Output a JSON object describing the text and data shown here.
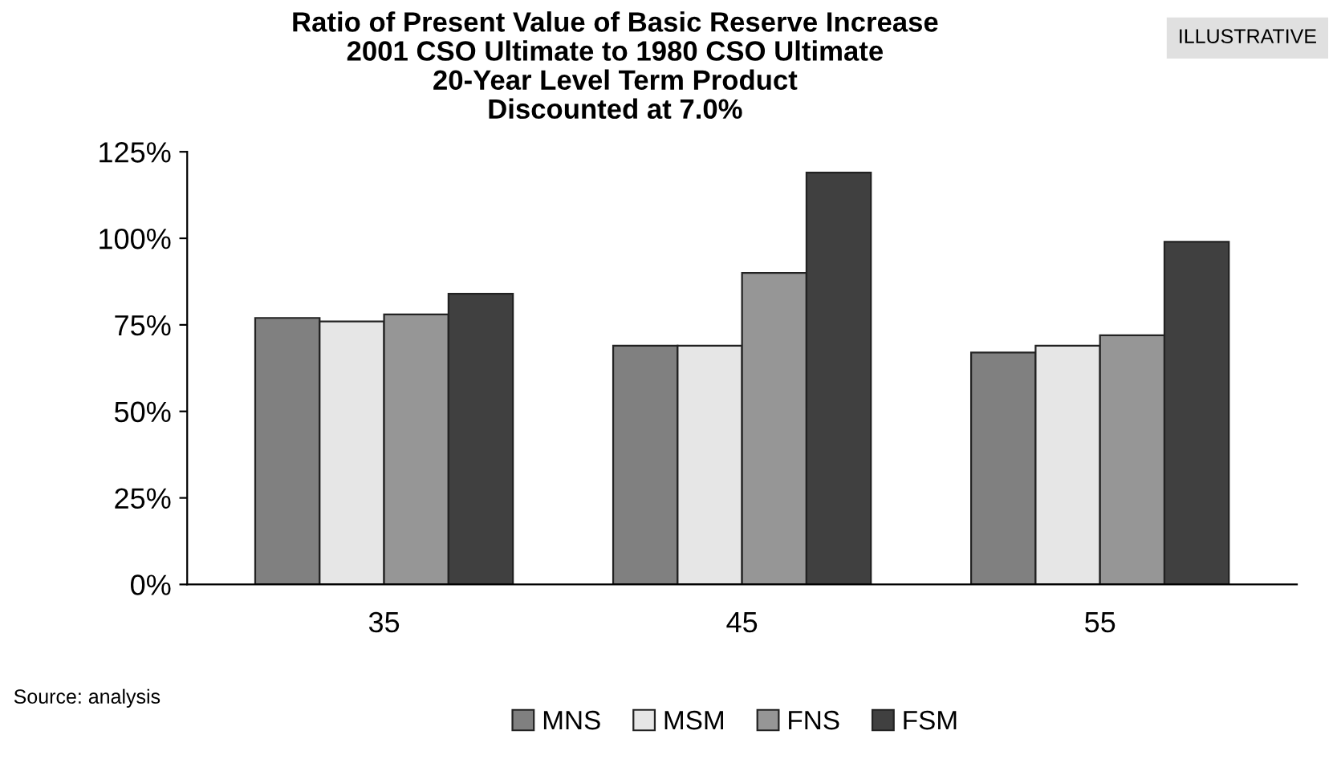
{
  "chart_data": {
    "type": "bar",
    "title": "Ratio of Present Value of Basic Reserve Increase\n2001 CSO Ultimate to 1980 CSO Ultimate\n20-Year Level Term Product\nDiscounted at 7.0%",
    "categories": [
      "35",
      "45",
      "55"
    ],
    "series": [
      {
        "name": "MNS",
        "color": "#808080",
        "values": [
          77,
          69,
          67
        ]
      },
      {
        "name": "MSM",
        "color": "#e6e6e6",
        "values": [
          76,
          69,
          69
        ]
      },
      {
        "name": "FNS",
        "color": "#969696",
        "values": [
          78,
          90,
          72
        ]
      },
      {
        "name": "FSM",
        "color": "#404040",
        "values": [
          84,
          119,
          99
        ]
      }
    ],
    "ylim": [
      0,
      125
    ],
    "yticks": [
      {
        "value": 0,
        "label": "0%"
      },
      {
        "value": 25,
        "label": "25%"
      },
      {
        "value": 50,
        "label": "50%"
      },
      {
        "value": 75,
        "label": "75%"
      },
      {
        "value": 100,
        "label": "100%"
      },
      {
        "value": 125,
        "label": "125%"
      }
    ],
    "grid": false,
    "legend": "bottom",
    "annotations": [
      "Source: analysis",
      "ILLUSTRATIVE"
    ]
  }
}
